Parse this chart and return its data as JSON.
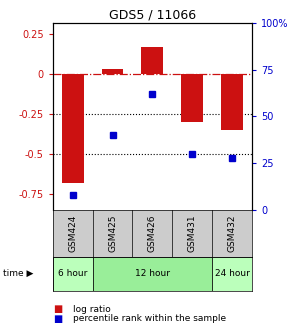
{
  "title": "GDS5 / 11066",
  "samples": [
    "GSM424",
    "GSM425",
    "GSM426",
    "GSM431",
    "GSM432"
  ],
  "log_ratios": [
    -0.68,
    0.03,
    0.17,
    -0.3,
    -0.35
  ],
  "percentile_ranks": [
    8,
    40,
    62,
    30,
    28
  ],
  "ylim_left": [
    -0.85,
    0.32
  ],
  "ylim_right": [
    0,
    100
  ],
  "bar_color": "#cc1111",
  "dot_color": "#0000cc",
  "hline_color": "#cc1111",
  "dotted_lines": [
    -0.25,
    -0.5
  ],
  "right_ticks": [
    0,
    25,
    50,
    75,
    100
  ],
  "left_ticks": [
    -0.75,
    -0.5,
    -0.25,
    0,
    0.25
  ],
  "bar_width": 0.55,
  "group_info": [
    {
      "label": "6 hour",
      "start": 0,
      "end": 0,
      "color": "#bbffbb"
    },
    {
      "label": "12 hour",
      "start": 1,
      "end": 3,
      "color": "#99ee99"
    },
    {
      "label": "24 hour",
      "start": 4,
      "end": 4,
      "color": "#bbffbb"
    }
  ],
  "legend_items": [
    {
      "label": "log ratio",
      "color": "#cc1111"
    },
    {
      "label": "percentile rank within the sample",
      "color": "#0000cc"
    }
  ]
}
